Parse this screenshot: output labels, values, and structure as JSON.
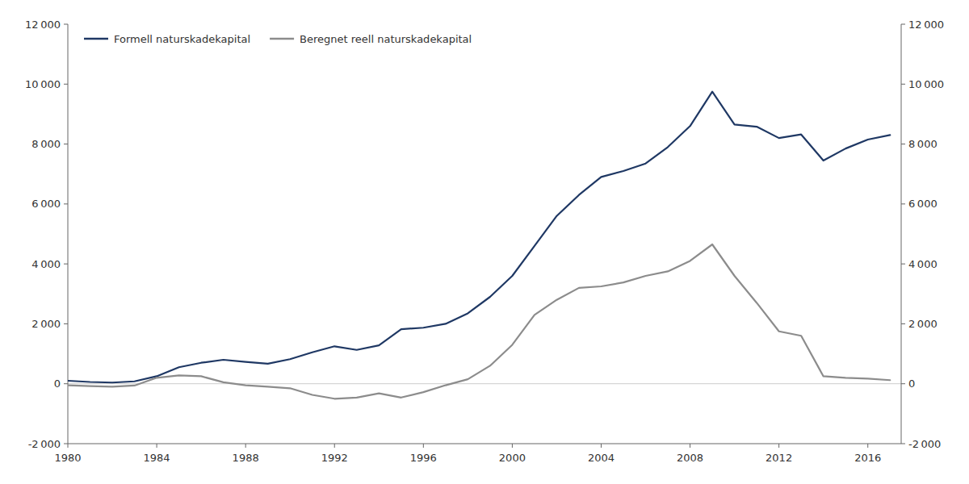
{
  "chart_data": {
    "type": "line",
    "x": [
      1980,
      1981,
      1982,
      1983,
      1984,
      1985,
      1986,
      1987,
      1988,
      1989,
      1990,
      1991,
      1992,
      1993,
      1994,
      1995,
      1996,
      1997,
      1998,
      1999,
      2000,
      2001,
      2002,
      2003,
      2004,
      2005,
      2006,
      2007,
      2008,
      2009,
      2010,
      2011,
      2012,
      2013,
      2014,
      2015,
      2016,
      2017
    ],
    "series": [
      {
        "name": "Formell naturskadekapital",
        "color": "#1f3864",
        "values": [
          100,
          60,
          40,
          80,
          250,
          550,
          700,
          800,
          730,
          670,
          820,
          1050,
          1250,
          1130,
          1280,
          1820,
          1870,
          2000,
          2350,
          2900,
          3600,
          4600,
          5600,
          6300,
          6900,
          7100,
          7350,
          7900,
          8600,
          9750,
          8650,
          8580,
          8200,
          8320,
          7450,
          7850,
          8150,
          8300
        ]
      },
      {
        "name": "Beregnet reell naturskadekapital",
        "color": "#8c8c8c",
        "values": [
          -50,
          -80,
          -100,
          -60,
          200,
          280,
          250,
          50,
          -50,
          -100,
          -150,
          -370,
          -500,
          -460,
          -320,
          -460,
          -280,
          -50,
          150,
          600,
          1300,
          2300,
          2800,
          3200,
          3250,
          3380,
          3600,
          3750,
          4100,
          4650,
          3600,
          2700,
          1750,
          1600,
          250,
          200,
          170,
          120
        ]
      }
    ],
    "xlim": [
      1980,
      2017.5
    ],
    "xticks": [
      1980,
      1984,
      1988,
      1992,
      1996,
      2000,
      2004,
      2008,
      2012,
      2016
    ],
    "ylim": [
      -2000,
      12000
    ],
    "yticks": [
      {
        "value": -2000,
        "label": "-2 000"
      },
      0,
      {
        "value": 2000,
        "label": "2 000"
      },
      {
        "value": 4000,
        "label": "4 000"
      },
      {
        "value": 6000,
        "label": "6 000"
      },
      {
        "value": 8000,
        "label": "8 000"
      },
      {
        "value": 10000,
        "label": "10 000"
      },
      {
        "value": 12000,
        "label": "12 000"
      }
    ],
    "y2lim": [
      -2000,
      12000
    ],
    "y2ticks": [
      {
        "value": -2000,
        "label": "-2 000"
      },
      0,
      {
        "value": 2000,
        "label": "2 000"
      },
      {
        "value": 4000,
        "label": "4 000"
      },
      {
        "value": 6000,
        "label": "6 000"
      },
      {
        "value": 8000,
        "label": "8 000"
      },
      {
        "value": 10000,
        "label": "10 000"
      },
      {
        "value": 12000,
        "label": "12 000"
      }
    ],
    "grid": false,
    "legend": "upper left"
  }
}
